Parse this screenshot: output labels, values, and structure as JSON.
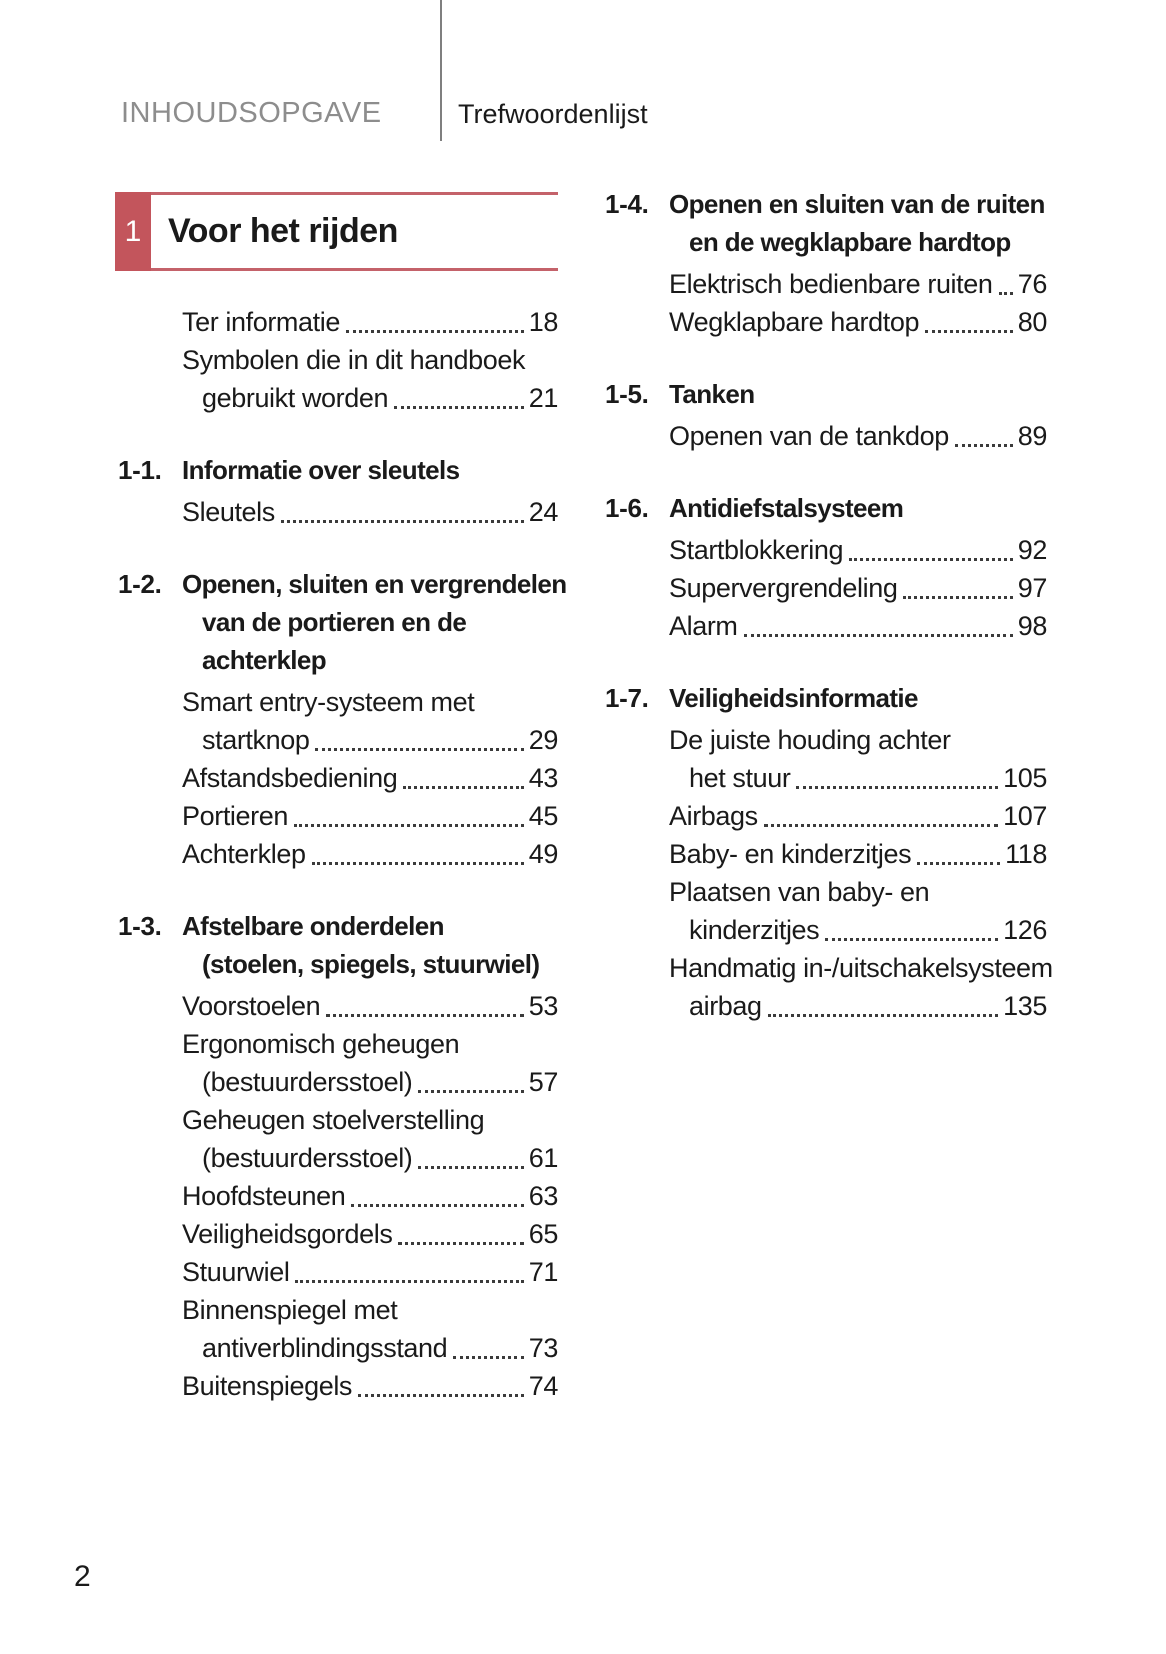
{
  "header": {
    "contents_label": "INHOUDSOPGAVE",
    "index_label": "Trefwoordenlijst"
  },
  "chapter": {
    "number": "1",
    "title": "Voor het rijden"
  },
  "footer": {
    "page_number": "2"
  },
  "colors": {
    "accent": "#c3555c",
    "accent_line": "#c4626a",
    "header_gray": "#8d8d8d",
    "text": "#1a1a1a"
  },
  "columns": {
    "left": {
      "sections": [
        {
          "number": "",
          "title_lines": [],
          "entries": [
            {
              "lines": [
                "Ter informatie"
              ],
              "page": "18"
            },
            {
              "lines": [
                "Symbolen die in dit handboek",
                "gebruikt worden"
              ],
              "page": "21"
            }
          ]
        },
        {
          "number": "1-1.",
          "title_lines": [
            "Informatie over sleutels"
          ],
          "entries": [
            {
              "lines": [
                "Sleutels"
              ],
              "page": "24"
            }
          ]
        },
        {
          "number": "1-2.",
          "title_lines": [
            "Openen, sluiten en vergrendelen",
            "van de portieren en de",
            "achterklep"
          ],
          "entries": [
            {
              "lines": [
                "Smart entry-systeem met",
                "startknop"
              ],
              "page": "29"
            },
            {
              "lines": [
                "Afstandsbediening"
              ],
              "page": "43"
            },
            {
              "lines": [
                "Portieren"
              ],
              "page": "45"
            },
            {
              "lines": [
                "Achterklep"
              ],
              "page": "49"
            }
          ]
        },
        {
          "number": "1-3.",
          "title_lines": [
            "Afstelbare onderdelen",
            "(stoelen, spiegels, stuurwiel)"
          ],
          "entries": [
            {
              "lines": [
                "Voorstoelen"
              ],
              "page": "53"
            },
            {
              "lines": [
                "Ergonomisch geheugen",
                "(bestuurdersstoel)"
              ],
              "page": "57"
            },
            {
              "lines": [
                "Geheugen stoelverstelling",
                "(bestuurdersstoel)"
              ],
              "page": "61"
            },
            {
              "lines": [
                "Hoofdsteunen"
              ],
              "page": "63"
            },
            {
              "lines": [
                "Veiligheidsgordels"
              ],
              "page": "65"
            },
            {
              "lines": [
                "Stuurwiel"
              ],
              "page": "71"
            },
            {
              "lines": [
                "Binnenspiegel met",
                "antiverblindingsstand"
              ],
              "page": "73"
            },
            {
              "lines": [
                "Buitenspiegels"
              ],
              "page": "74"
            }
          ]
        }
      ]
    },
    "right": {
      "sections": [
        {
          "number": "1-4.",
          "title_lines": [
            "Openen en sluiten van de ruiten",
            "en de wegklapbare hardtop"
          ],
          "entries": [
            {
              "lines": [
                "Elektrisch bedienbare ruiten"
              ],
              "page": "76"
            },
            {
              "lines": [
                "Wegklapbare hardtop"
              ],
              "page": "80"
            }
          ]
        },
        {
          "number": "1-5.",
          "title_lines": [
            "Tanken"
          ],
          "entries": [
            {
              "lines": [
                "Openen van de tankdop"
              ],
              "page": "89"
            }
          ]
        },
        {
          "number": "1-6.",
          "title_lines": [
            "Antidiefstalsysteem"
          ],
          "entries": [
            {
              "lines": [
                "Startblokkering"
              ],
              "page": "92"
            },
            {
              "lines": [
                "Supervergrendeling"
              ],
              "page": "97"
            },
            {
              "lines": [
                "Alarm"
              ],
              "page": "98"
            }
          ]
        },
        {
          "number": "1-7.",
          "title_lines": [
            "Veiligheidsinformatie"
          ],
          "entries": [
            {
              "lines": [
                "De juiste houding achter",
                "het stuur"
              ],
              "page": "105"
            },
            {
              "lines": [
                "Airbags"
              ],
              "page": "107"
            },
            {
              "lines": [
                "Baby- en kinderzitjes"
              ],
              "page": "118"
            },
            {
              "lines": [
                "Plaatsen van baby- en",
                "kinderzitjes"
              ],
              "page": "126"
            },
            {
              "lines": [
                "Handmatig in-/uitschakelsysteem",
                "airbag"
              ],
              "page": "135"
            }
          ]
        }
      ]
    }
  }
}
